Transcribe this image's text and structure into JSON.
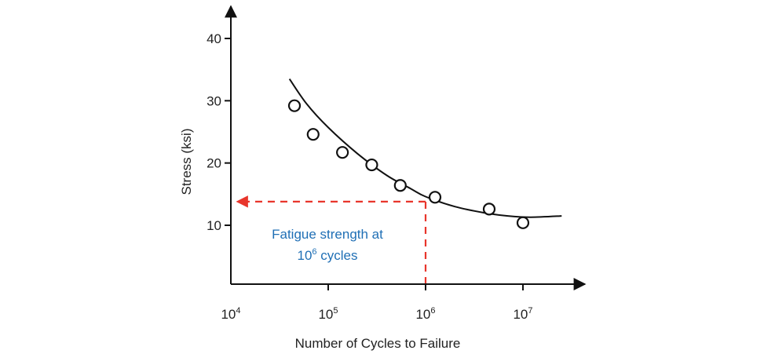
{
  "chart_data": {
    "type": "scatter",
    "title": "",
    "xlabel": "Number of Cycles to Failure",
    "ylabel": "Stress (ksi)",
    "x_scale": "log",
    "xlim": [
      10000,
      25000000
    ],
    "ylim": [
      2,
      45
    ],
    "x_ticks": [
      {
        "value": 10000,
        "base": "10",
        "exp": "4"
      },
      {
        "value": 100000,
        "base": "10",
        "exp": "5"
      },
      {
        "value": 1000000,
        "base": "10",
        "exp": "6"
      },
      {
        "value": 10000000,
        "base": "10",
        "exp": "7"
      }
    ],
    "y_ticks": [
      {
        "value": 10,
        "label": "10"
      },
      {
        "value": 20,
        "label": "20"
      },
      {
        "value": 30,
        "label": "30"
      },
      {
        "value": 40,
        "label": "40"
      }
    ],
    "points": [
      {
        "x": 45000,
        "y": 29.2
      },
      {
        "x": 70000,
        "y": 24.6
      },
      {
        "x": 140000,
        "y": 21.7
      },
      {
        "x": 280000,
        "y": 19.7
      },
      {
        "x": 550000,
        "y": 16.4
      },
      {
        "x": 1250000,
        "y": 14.5
      },
      {
        "x": 4500000,
        "y": 12.6
      },
      {
        "x": 10000000,
        "y": 10.4
      }
    ],
    "fit_curve": [
      {
        "x": 40000,
        "y": 33.5
      },
      {
        "x": 60000,
        "y": 29.5
      },
      {
        "x": 100000,
        "y": 25.7
      },
      {
        "x": 200000,
        "y": 21.5
      },
      {
        "x": 400000,
        "y": 18.0
      },
      {
        "x": 700000,
        "y": 15.9
      },
      {
        "x": 1000000,
        "y": 14.6
      },
      {
        "x": 2000000,
        "y": 13.0
      },
      {
        "x": 4000000,
        "y": 12.0
      },
      {
        "x": 7000000,
        "y": 11.5
      },
      {
        "x": 12000000,
        "y": 11.3
      },
      {
        "x": 25000000,
        "y": 11.5
      }
    ],
    "annotation": {
      "line1": "Fatigue strength at",
      "line2_base": "10",
      "line2_exp": "6",
      "line2_suffix": " cycles",
      "at_x": 1000000,
      "at_y": 13.8,
      "text_color": "#1f6fb5",
      "line_color": "#e8352b"
    },
    "grid": false,
    "legend": "none"
  }
}
